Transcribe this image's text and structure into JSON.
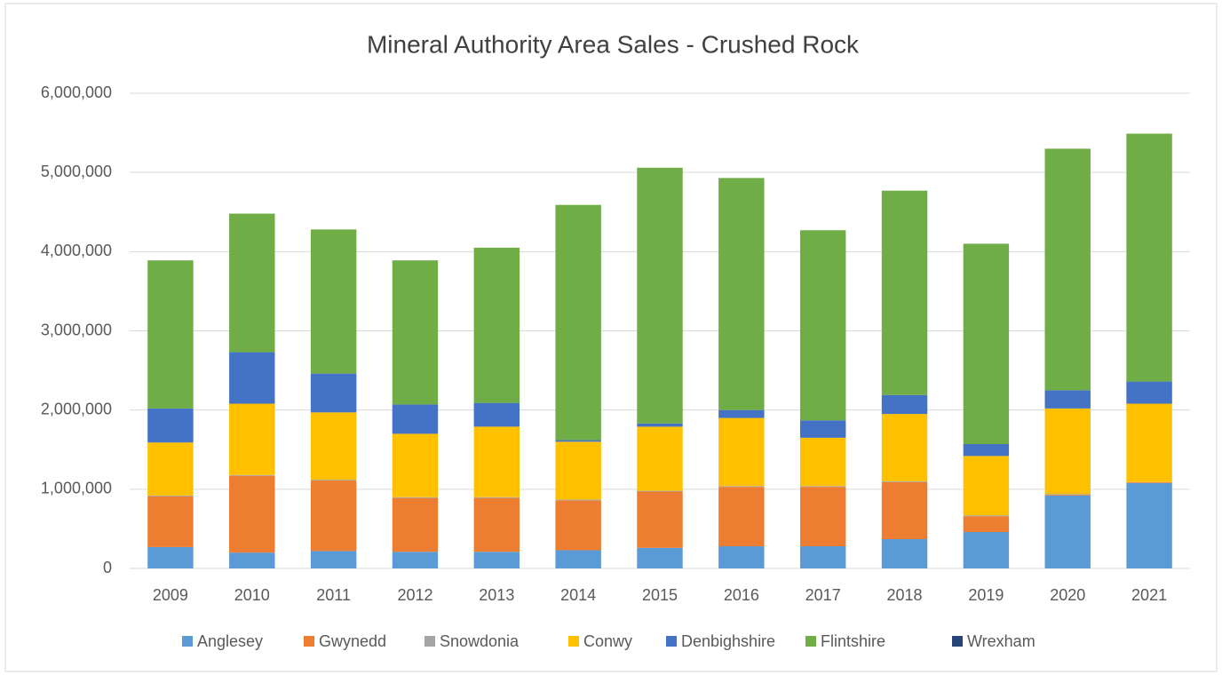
{
  "chart_data": {
    "type": "stacked_bar",
    "title": "Mineral Authority Area Sales - Crushed Rock",
    "categories": [
      "2009",
      "2010",
      "2011",
      "2012",
      "2013",
      "2014",
      "2015",
      "2016",
      "2017",
      "2018",
      "2019",
      "2020",
      "2021"
    ],
    "series": [
      {
        "name": "Anglesey",
        "color": "#5b9bd5",
        "values": [
          270000,
          200000,
          220000,
          210000,
          210000,
          230000,
          260000,
          280000,
          280000,
          370000,
          460000,
          920000,
          1080000
        ]
      },
      {
        "name": "Gwynedd",
        "color": "#ed7d31",
        "values": [
          640000,
          970000,
          890000,
          680000,
          680000,
          630000,
          710000,
          750000,
          750000,
          720000,
          200000,
          10000,
          10000
        ]
      },
      {
        "name": "Snowdonia",
        "color": "#a5a5a5",
        "values": [
          10000,
          10000,
          10000,
          10000,
          10000,
          10000,
          10000,
          10000,
          10000,
          10000,
          10000,
          10000,
          0
        ]
      },
      {
        "name": "Conwy",
        "color": "#ffc000",
        "values": [
          670000,
          900000,
          850000,
          800000,
          890000,
          730000,
          810000,
          860000,
          610000,
          850000,
          750000,
          1080000,
          990000
        ]
      },
      {
        "name": "Denbighshire",
        "color": "#4472c4",
        "values": [
          430000,
          650000,
          490000,
          370000,
          300000,
          20000,
          40000,
          100000,
          220000,
          240000,
          150000,
          230000,
          280000
        ]
      },
      {
        "name": "Flintshire",
        "color": "#70ad47",
        "values": [
          1870000,
          1750000,
          1820000,
          1820000,
          1960000,
          2970000,
          3230000,
          2930000,
          2400000,
          2580000,
          2530000,
          3050000,
          3130000
        ]
      },
      {
        "name": "Wrexham",
        "color": "#264478",
        "values": [
          0,
          0,
          0,
          0,
          0,
          0,
          0,
          0,
          0,
          0,
          0,
          0,
          0
        ]
      }
    ],
    "ylim": [
      0,
      6000000
    ],
    "yticks": [
      0,
      {
        "value": 1000000,
        "label": "1,000,000"
      },
      {
        "value": 2000000,
        "label": "2,000,000"
      },
      {
        "value": 3000000,
        "label": "3,000,000"
      },
      {
        "value": 4000000,
        "label": "4,000,000"
      },
      {
        "value": 5000000,
        "label": "5,000,000"
      },
      {
        "value": 6000000,
        "label": "6,000,000"
      }
    ],
    "grid": true,
    "legend": "bottom"
  }
}
